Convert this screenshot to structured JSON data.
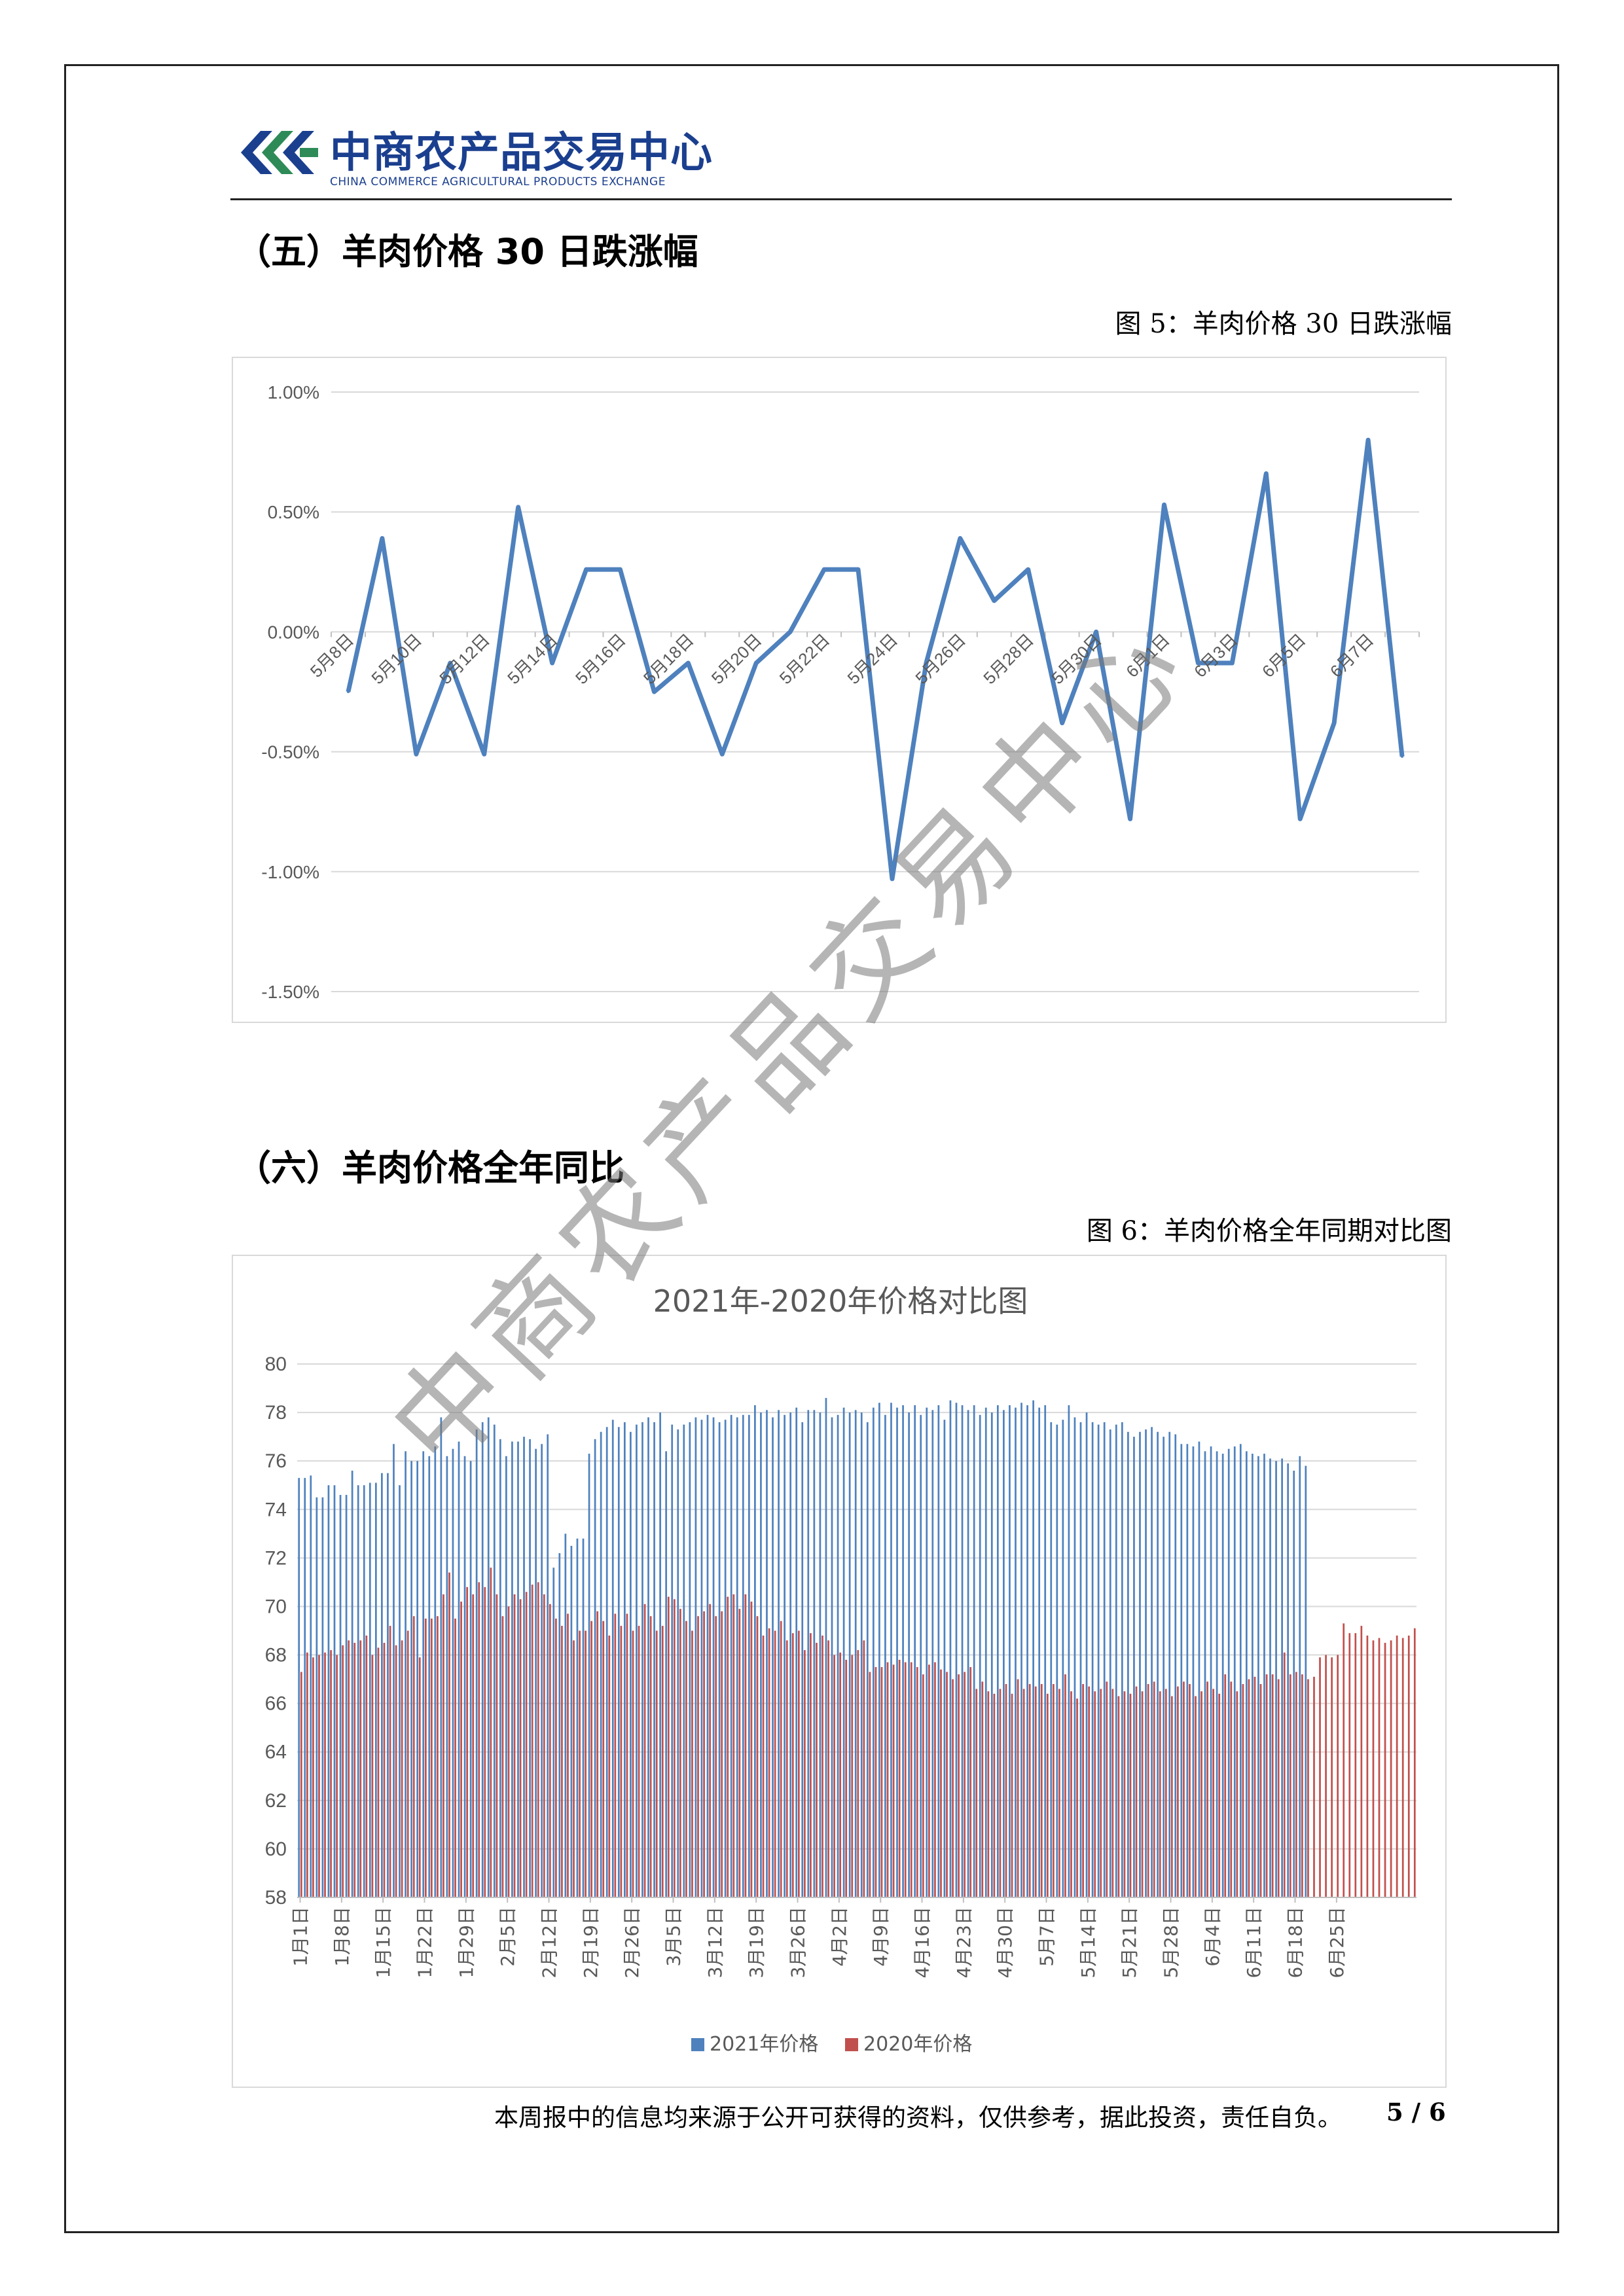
{
  "header": {
    "logo_cn": "中商农产品交易中心",
    "logo_en": "CHINA COMMERCE AGRICULTURAL PRODUCTS EXCHANGE"
  },
  "section5": {
    "title": "（五）羊肉价格 30 日跌涨幅",
    "caption": "图  5：羊肉价格 30 日跌涨幅"
  },
  "section6": {
    "title": "（六）羊肉价格全年同比",
    "caption": "图 6：羊肉价格全年同期对比图"
  },
  "footer": {
    "note": "本周报中的信息均来源于公开可获得的资料，仅供参考，据此投资，责任自负。",
    "page": "5 / 6"
  },
  "watermark": "中商农产品交易中心",
  "colors": {
    "brand": "#1b3f8f",
    "line": "#4e81bd",
    "series_2021": "#4f81bd",
    "series_2020": "#c0504d",
    "grid": "#d9d9d9"
  },
  "chart_data": [
    {
      "type": "line",
      "title": "",
      "ylim": [
        -0.015,
        0.01
      ],
      "y_ticks": [
        "1.00%",
        "0.50%",
        "0.00%",
        "-0.50%",
        "-1.00%",
        "-1.50%"
      ],
      "x_labels": [
        "5月8日",
        "5月10日",
        "5月12日",
        "5月14日",
        "5月16日",
        "5月18日",
        "5月20日",
        "5月22日",
        "5月24日",
        "5月26日",
        "5月28日",
        "5月30日",
        "6月1日",
        "6月3日",
        "6月5日",
        "6月7日"
      ],
      "x": [
        "5月8日",
        "5月9日",
        "5月10日",
        "5月11日",
        "5月12日",
        "5月13日",
        "5月14日",
        "5月15日",
        "5月16日",
        "5月17日",
        "5月18日",
        "5月19日",
        "5月20日",
        "5月21日",
        "5月22日",
        "5月23日",
        "5月24日",
        "5月25日",
        "5月26日",
        "5月27日",
        "5月28日",
        "5月29日",
        "5月30日",
        "5月31日",
        "6月1日",
        "6月2日",
        "6月3日",
        "6月4日",
        "6月5日",
        "6月6日",
        "6月7日",
        "6月8日"
      ],
      "values": [
        -0.0025,
        0.0039,
        -0.0051,
        -0.0013,
        -0.0051,
        0.0052,
        -0.0013,
        0.0026,
        0.0026,
        -0.0025,
        -0.0013,
        -0.0051,
        -0.0013,
        0.0,
        0.0026,
        0.0026,
        -0.0103,
        -0.0013,
        0.0039,
        0.0013,
        0.0026,
        -0.0038,
        0.0,
        -0.0078,
        0.0053,
        -0.0013,
        -0.0013,
        0.0066,
        -0.0078,
        -0.0038,
        0.008,
        -0.0052
      ],
      "grid": true,
      "legend": "none"
    },
    {
      "type": "bar",
      "title": "2021年-2020年价格对比图",
      "ylim": [
        58,
        80
      ],
      "y_ticks": [
        "80",
        "78",
        "76",
        "74",
        "72",
        "70",
        "68",
        "66",
        "64",
        "62",
        "60",
        "58"
      ],
      "x_labels": [
        "1月1日",
        "1月8日",
        "1月15日",
        "1月22日",
        "1月29日",
        "2月5日",
        "2月12日",
        "2月19日",
        "2月26日",
        "3月5日",
        "3月12日",
        "3月19日",
        "3月26日",
        "4月2日",
        "4月9日",
        "4月16日",
        "4月23日",
        "4月30日",
        "5月7日",
        "5月14日",
        "5月21日",
        "5月28日",
        "6月4日",
        "6月11日",
        "6月18日",
        "6月25日"
      ],
      "series": [
        {
          "name": "2021年价格",
          "values": [
            75.3,
            75.3,
            75.4,
            74.5,
            74.5,
            75.0,
            75.0,
            74.6,
            74.6,
            75.6,
            75.0,
            75.0,
            75.1,
            75.1,
            75.5,
            75.5,
            76.7,
            75.0,
            76.4,
            76.0,
            76.0,
            76.4,
            76.2,
            76.6,
            77.8,
            76.2,
            76.5,
            76.8,
            76.2,
            76.0,
            77.3,
            77.6,
            77.8,
            77.5,
            76.9,
            76.2,
            76.8,
            76.8,
            77.0,
            76.9,
            76.5,
            76.7,
            77.1,
            71.6,
            72.2,
            73.0,
            72.5,
            72.8,
            72.8,
            76.3,
            76.9,
            77.2,
            77.4,
            77.7,
            77.4,
            77.6,
            77.2,
            77.5,
            77.6,
            77.8,
            77.6,
            78.0,
            76.4,
            77.5,
            77.3,
            77.5,
            77.6,
            77.8,
            77.7,
            77.9,
            77.8,
            77.6,
            77.7,
            77.9,
            77.8,
            77.9,
            77.9,
            78.3,
            78.0,
            78.1,
            77.8,
            78.1,
            77.9,
            78.0,
            78.2,
            77.6,
            78.1,
            78.1,
            78.0,
            78.6,
            77.8,
            77.9,
            78.2,
            78.0,
            78.1,
            78.0,
            77.6,
            78.2,
            78.4,
            77.9,
            78.4,
            78.2,
            78.3,
            78.0,
            78.3,
            77.9,
            78.2,
            78.1,
            78.3,
            77.7,
            78.5,
            78.4,
            78.3,
            78.1,
            78.3,
            77.9,
            78.2,
            78.0,
            78.3,
            78.1,
            78.3,
            78.2,
            78.4,
            78.3,
            78.5,
            78.2,
            78.3,
            77.6,
            77.5,
            77.7,
            78.3,
            77.8,
            77.6,
            78.0,
            77.6,
            77.5,
            77.6,
            77.3,
            77.5,
            77.6,
            77.2,
            77.0,
            77.2,
            77.3,
            77.4,
            77.2,
            77.0,
            77.2,
            77.1,
            76.7,
            76.7,
            76.6,
            76.8,
            76.4,
            76.6,
            76.4,
            76.3,
            76.5,
            76.6,
            76.7,
            76.4,
            76.3,
            76.2,
            76.3,
            76.1,
            76.0,
            76.1,
            75.9,
            75.6,
            76.2,
            75.8
          ],
          "color": "#4f81bd"
        },
        {
          "name": "2020年价格",
          "values": [
            67.3,
            68.1,
            67.9,
            68.0,
            68.1,
            68.2,
            68.0,
            68.4,
            68.6,
            68.5,
            68.6,
            68.8,
            68.0,
            68.3,
            68.5,
            69.2,
            68.4,
            68.6,
            69.0,
            69.6,
            67.9,
            69.5,
            69.5,
            69.6,
            70.5,
            71.4,
            69.5,
            70.2,
            70.8,
            70.5,
            71.0,
            70.8,
            71.6,
            70.5,
            69.6,
            70.0,
            70.5,
            70.3,
            70.6,
            70.9,
            71.0,
            70.5,
            70.1,
            69.5,
            69.2,
            69.7,
            68.6,
            69.0,
            69.0,
            69.4,
            69.8,
            69.4,
            68.8,
            69.7,
            69.2,
            69.7,
            69.0,
            69.2,
            70.1,
            69.6,
            69.0,
            69.2,
            70.4,
            70.3,
            69.9,
            69.4,
            69.0,
            69.6,
            69.8,
            70.1,
            69.6,
            69.8,
            70.4,
            70.5,
            69.9,
            70.5,
            70.2,
            69.6,
            68.8,
            69.1,
            69.0,
            69.4,
            68.6,
            68.9,
            69.0,
            68.2,
            68.9,
            68.5,
            68.8,
            68.6,
            68.0,
            68.1,
            67.8,
            68.0,
            68.2,
            68.6,
            67.3,
            67.5,
            67.5,
            67.7,
            67.6,
            67.8,
            67.7,
            67.7,
            67.5,
            67.2,
            67.6,
            67.7,
            67.4,
            67.3,
            67.0,
            67.2,
            67.3,
            67.5,
            66.6,
            66.9,
            66.5,
            66.4,
            66.6,
            66.8,
            66.4,
            67.0,
            66.6,
            66.8,
            66.7,
            66.8,
            66.4,
            66.8,
            66.6,
            67.2,
            66.5,
            66.2,
            66.8,
            66.7,
            66.5,
            66.6,
            66.9,
            66.6,
            66.3,
            66.5,
            66.4,
            66.7,
            66.5,
            66.8,
            66.9,
            66.5,
            66.6,
            66.3,
            66.7,
            66.9,
            66.8,
            66.3,
            66.5,
            66.9,
            66.6,
            66.4,
            67.2,
            66.9,
            66.5,
            66.8,
            67.0,
            67.1,
            66.8,
            67.2,
            67.2,
            67.0,
            68.1,
            67.2,
            67.3,
            67.2,
            67.0,
            67.1,
            67.9,
            68.0,
            67.9,
            68.0,
            69.3,
            68.9,
            68.9,
            69.2,
            68.8,
            68.6,
            68.7,
            68.5,
            68.6,
            68.8,
            68.7,
            68.8,
            69.1
          ],
          "color": "#c0504d"
        }
      ],
      "grid": true,
      "legend": "bottom"
    }
  ]
}
